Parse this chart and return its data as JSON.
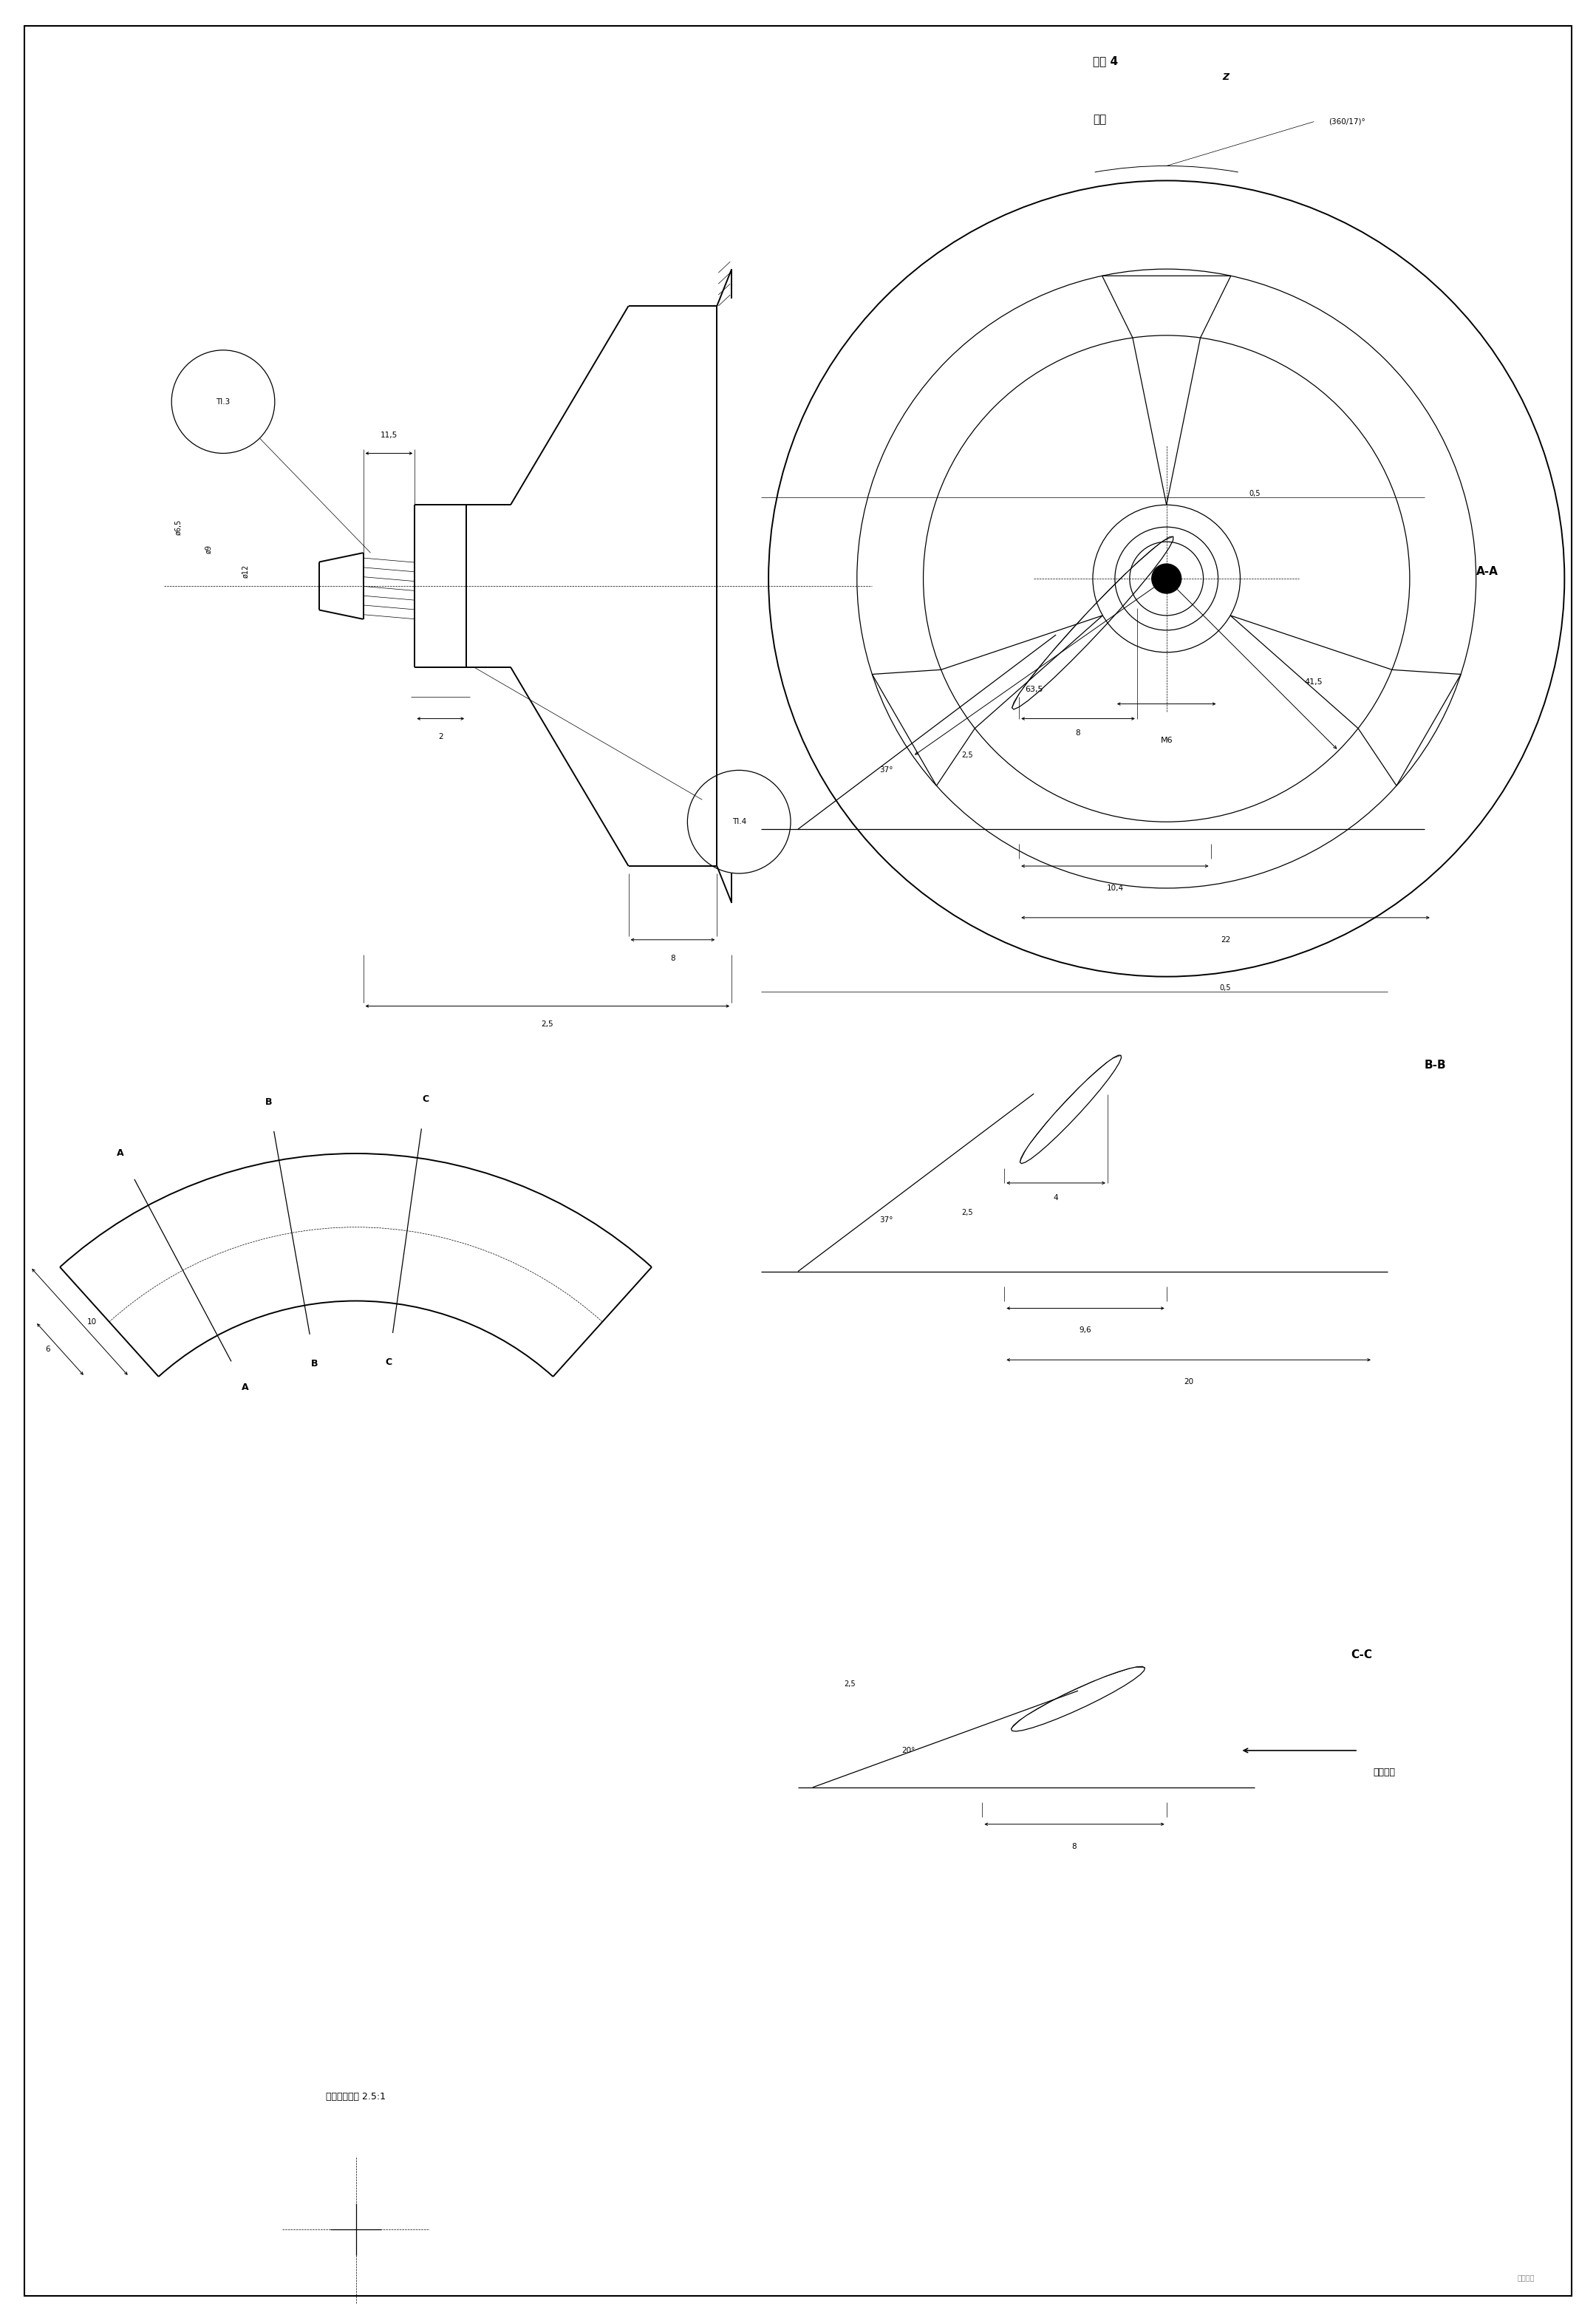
{
  "title": "图表 4",
  "subtitle": "涡轮",
  "bg_color": "#ffffff",
  "line_color": "#000000",
  "page_width": 21.6,
  "page_height": 31.41,
  "Tl3": "Tl.3",
  "Tl4": "Tl.4",
  "dim_11_5": "11,5",
  "dim_6_5": "ø6,5",
  "dim_9": "ø9",
  "dim_12": "ø12",
  "dim_2": "2",
  "dim_8": "8",
  "dim_2_5": "2,5",
  "dim_63_5": "63,5",
  "dim_41_5": "41,5",
  "dim_M6": "M6",
  "dim_360_17": "(360/17)°",
  "dim_Z": "Z",
  "section_AA": "A-A",
  "section_BB": "B-B",
  "section_CC": "C-C",
  "dim_0_5": "0,5",
  "dim_37": "37°",
  "dim_8_aa": "8",
  "dim_2_5_aa": "2,5",
  "dim_10_4": "10,4",
  "dim_22": "22",
  "dim_4": "4",
  "dim_9_6": "9,6",
  "dim_20": "20",
  "dim_20_deg": "20°",
  "dim_8_cc": "8",
  "dim_10": "10",
  "dim_6": "6",
  "scale_text": "放大部分比例 2.5:1",
  "rotation_text": "旋转方向"
}
